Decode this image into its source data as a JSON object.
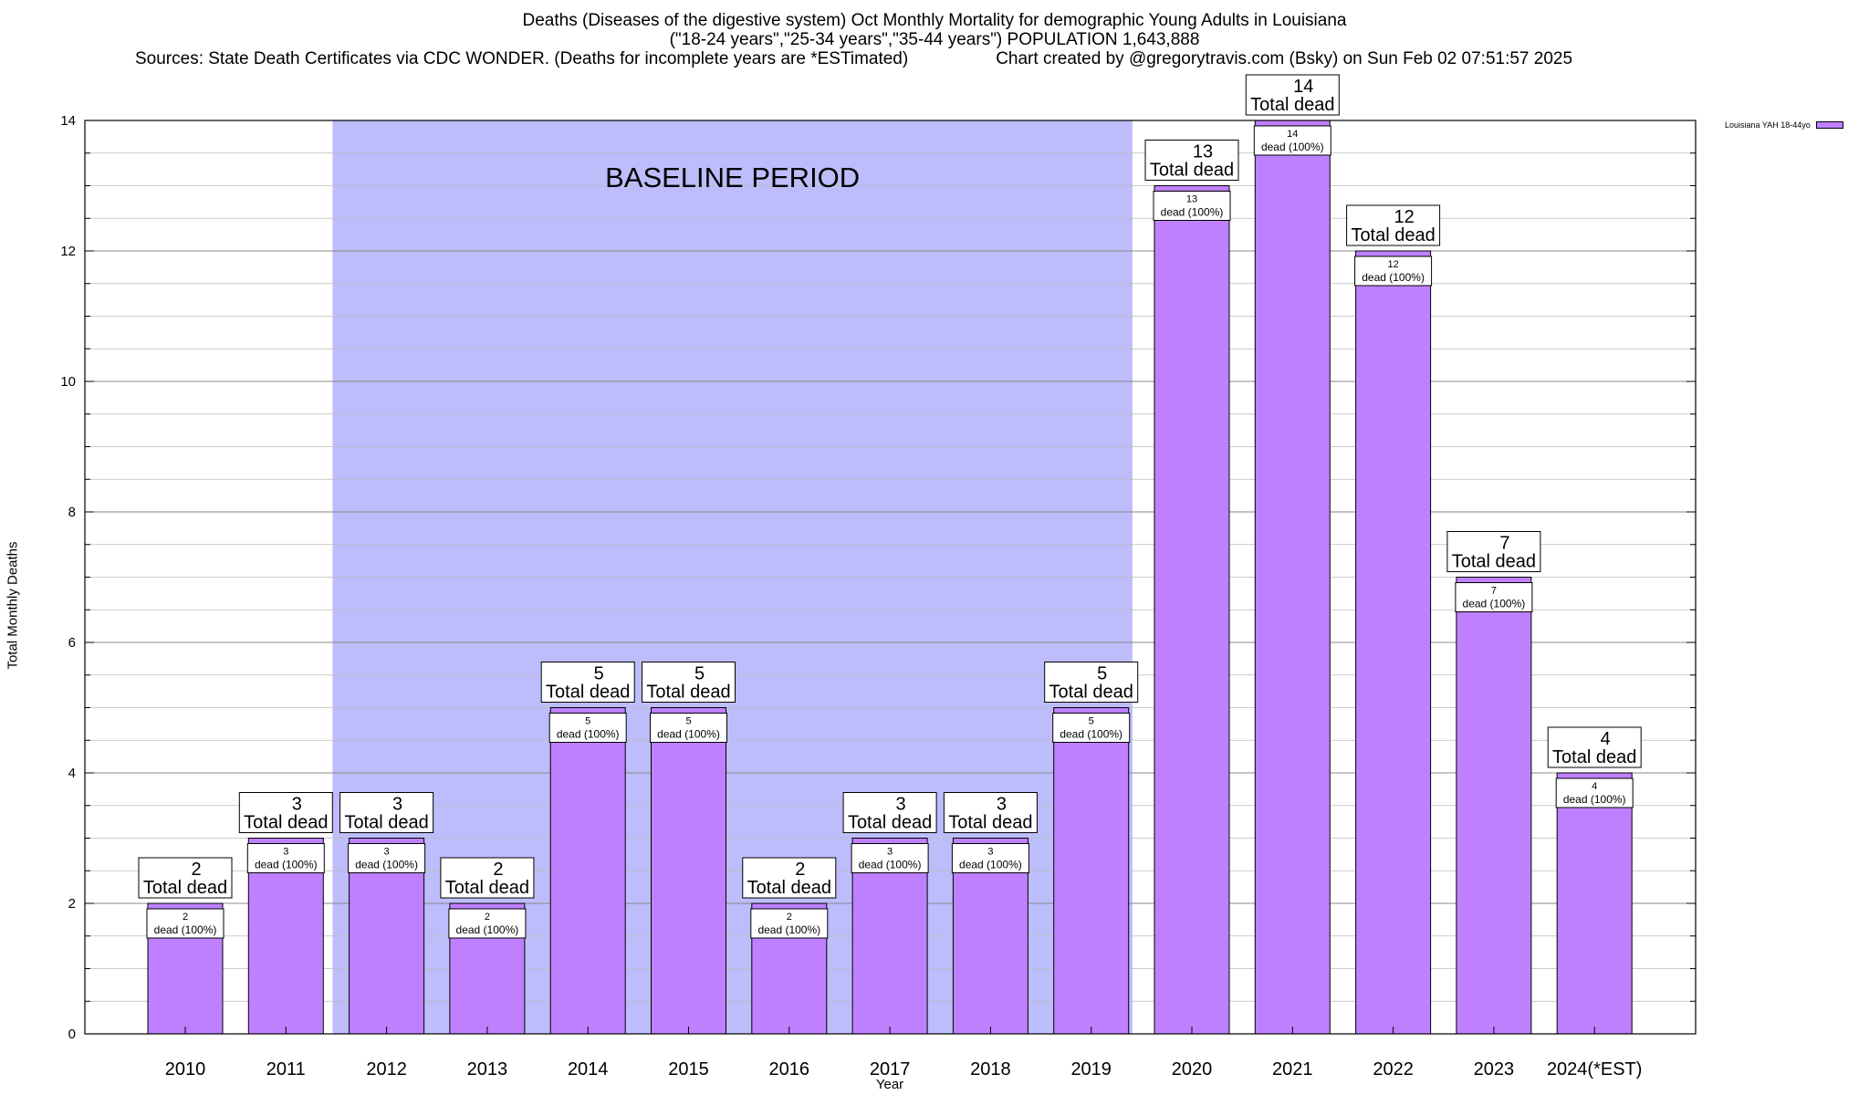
{
  "title": {
    "line1": "Deaths (Diseases of the digestive system) Oct Monthly Mortality for demographic Young Adults in Louisiana",
    "line2": "(\"18-24 years\",\"25-34 years\",\"35-44 years\") POPULATION 1,643,888",
    "sources": "Sources: State Death Certificates via CDC WONDER. (Deaths for incomplete years are *ESTimated)",
    "credit": "Chart created by @gregorytravis.com (Bsky) on Sun Feb 02 07:51:57 2025"
  },
  "colors": {
    "bar": "#bf80ff",
    "baseline": "#bdbdfb",
    "grid": "#999999"
  },
  "chart_data": {
    "type": "bar",
    "title": "Deaths (Diseases of the digestive system) Oct Monthly Mortality for demographic Young Adults in Louisiana",
    "xlabel": "Year",
    "ylabel": "Total Monthly Deaths",
    "ylim": [
      0,
      14
    ],
    "yticks": [
      0,
      2,
      4,
      6,
      8,
      10,
      12,
      14
    ],
    "grid": true,
    "legend_position": "top-right",
    "categories": [
      "2010",
      "2011",
      "2012",
      "2013",
      "2014",
      "2015",
      "2016",
      "2017",
      "2018",
      "2019",
      "2020",
      "2021",
      "2022",
      "2023",
      "2024(*EST)"
    ],
    "series": [
      {
        "name": "Louisiana YAH 18-44yo",
        "values": [
          2,
          3,
          3,
          2,
          5,
          5,
          2,
          3,
          3,
          5,
          13,
          14,
          12,
          7,
          4
        ]
      }
    ],
    "total_label_suffix": "Total dead",
    "inner_label_suffix": "dead (100%)",
    "annotation": {
      "text": "BASELINE PERIOD",
      "start_category": "2012",
      "end_category": "2019"
    }
  }
}
